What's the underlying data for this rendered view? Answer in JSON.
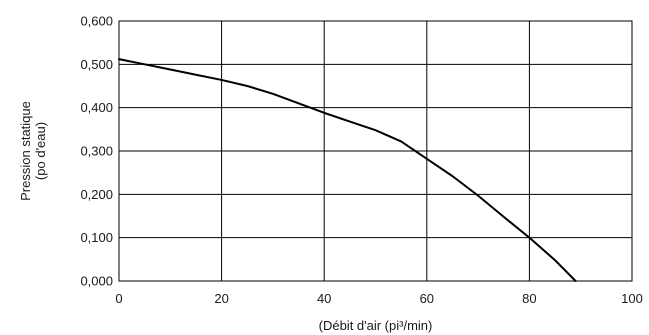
{
  "chart_data": {
    "type": "line",
    "title": "",
    "xlabel": "(Débit d'air (pi³/min)",
    "ylabel": [
      "Pression statique",
      "(po d'eau)"
    ],
    "xlim": [
      0,
      100
    ],
    "ylim": [
      0,
      0.6
    ],
    "grid": true,
    "x_ticks": [
      0,
      20,
      40,
      60,
      80,
      100
    ],
    "x_tick_labels": [
      "0",
      "20",
      "40",
      "60",
      "80",
      "100"
    ],
    "y_ticks": [
      0,
      0.1,
      0.2,
      0.3,
      0.4,
      0.5,
      0.6
    ],
    "y_tick_labels": [
      "0,000",
      "0,100",
      "0,200",
      "0,300",
      "0,400",
      "0,500",
      "0,600"
    ],
    "line_color": "#000000",
    "grid_color": "#000000",
    "series": [
      {
        "x": [
          0,
          5,
          10,
          15,
          20,
          25,
          30,
          35,
          40,
          45,
          50,
          55,
          60,
          65,
          70,
          75,
          80,
          85,
          89
        ],
        "y": [
          0.512,
          0.5,
          0.488,
          0.476,
          0.464,
          0.45,
          0.432,
          0.41,
          0.388,
          0.368,
          0.348,
          0.322,
          0.282,
          0.242,
          0.197,
          0.148,
          0.1,
          0.048,
          0.0
        ]
      }
    ]
  }
}
